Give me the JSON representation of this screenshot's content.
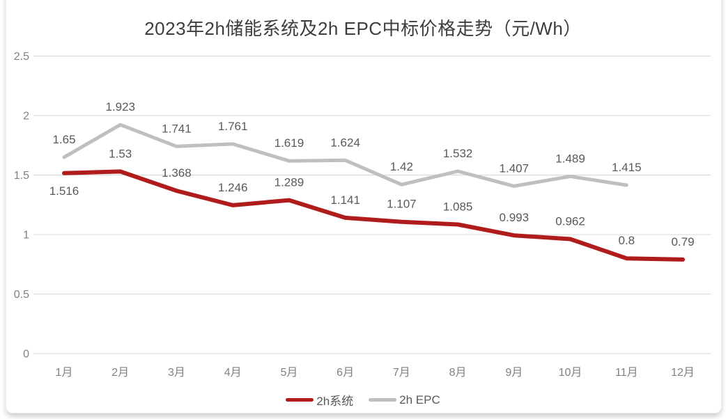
{
  "page": {
    "title": "2023年2h储能系统及2h EPC中标价格走势（元/Wh）"
  },
  "chart_data": {
    "type": "line",
    "title": "2023年2h储能系统及2h EPC中标价格走势（元/Wh）",
    "unit": "元/Wh",
    "categories": [
      "1月",
      "2月",
      "3月",
      "4月",
      "5月",
      "6月",
      "7月",
      "8月",
      "9月",
      "10月",
      "11月",
      "12月"
    ],
    "series": [
      {
        "name": "2h系统",
        "color": "#b01c1c",
        "values": [
          1.516,
          1.53,
          1.368,
          1.246,
          1.289,
          1.141,
          1.107,
          1.085,
          0.993,
          0.962,
          0.8,
          0.79
        ],
        "labels": [
          "1.516",
          "1.53",
          "1.368",
          "1.246",
          "1.289",
          "1.141",
          "1.107",
          "1.085",
          "0.993",
          "0.962",
          "0.8",
          "0.79"
        ]
      },
      {
        "name": "2h EPC",
        "color": "#bfbfbf",
        "values": [
          1.65,
          1.923,
          1.741,
          1.761,
          1.619,
          1.624,
          1.42,
          1.532,
          1.407,
          1.489,
          1.415
        ],
        "labels": [
          "1.65",
          "1.923",
          "1.741",
          "1.761",
          "1.619",
          "1.624",
          "1.42",
          "1.532",
          "1.407",
          "1.489",
          "1.415"
        ]
      }
    ],
    "y_ticks": [
      "2.5",
      "2",
      "1.5",
      "1",
      "0.5",
      "0"
    ],
    "ylim": [
      0,
      2.5
    ],
    "grid": true,
    "legend_position": "bottom"
  },
  "colors": {
    "grid": "#d9d9d9",
    "axis_text": "#808080",
    "label_text": "#595959",
    "title_text": "#3d3d3d"
  }
}
